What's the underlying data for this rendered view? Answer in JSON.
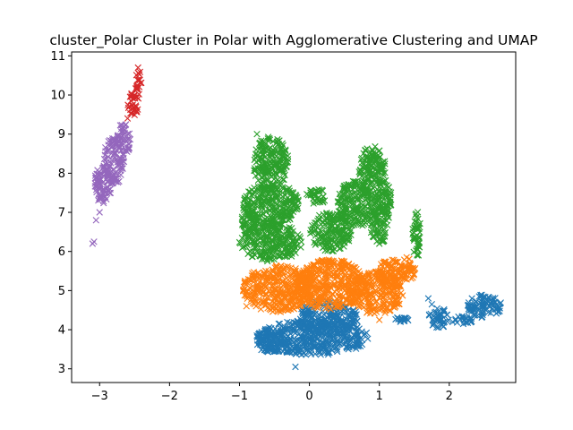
{
  "chart_data": {
    "type": "scatter",
    "title": "cluster_Polar Cluster in Polar with Agglomerative Clustering and UMAP",
    "xlabel": "",
    "ylabel": "",
    "xlim": [
      -3.4,
      2.95
    ],
    "ylim": [
      2.65,
      11.1
    ],
    "xticks": [
      -3,
      -2,
      -1,
      0,
      1,
      2
    ],
    "xtick_labels": [
      "−3",
      "−2",
      "−1",
      "0",
      "1",
      "2"
    ],
    "yticks": [
      3,
      4,
      5,
      6,
      7,
      8,
      9,
      10,
      11
    ],
    "ytick_labels": [
      "3",
      "4",
      "5",
      "6",
      "7",
      "8",
      "9",
      "10",
      "11"
    ],
    "grid": false,
    "legend": "none",
    "marker": "x",
    "series": [
      {
        "color": "#1f77b4",
        "regions": [
          {
            "cx": 0.05,
            "cy": 3.8,
            "rx": 0.8,
            "ry": 0.45
          },
          {
            "cx": 0.25,
            "cy": 4.3,
            "rx": 0.45,
            "ry": 0.45
          },
          {
            "cx": -0.55,
            "cy": 3.7,
            "rx": 0.25,
            "ry": 0.3
          },
          {
            "cx": 1.3,
            "cy": 4.25,
            "rx": 0.12,
            "ry": 0.07
          },
          {
            "cx": 1.85,
            "cy": 4.3,
            "rx": 0.15,
            "ry": 0.25
          },
          {
            "cx": 2.5,
            "cy": 4.6,
            "rx": 0.25,
            "ry": 0.3
          },
          {
            "cx": 2.2,
            "cy": 4.25,
            "rx": 0.15,
            "ry": 0.1
          }
        ],
        "points": [
          [
            -0.2,
            3.05
          ],
          [
            1.7,
            4.8
          ],
          [
            1.75,
            4.65
          ],
          [
            2.05,
            4.2
          ],
          [
            2.2,
            4.15
          ]
        ]
      },
      {
        "color": "#ff7f0e",
        "regions": [
          {
            "cx": -0.45,
            "cy": 5.05,
            "rx": 0.5,
            "ry": 0.6
          },
          {
            "cx": 0.3,
            "cy": 5.15,
            "rx": 0.5,
            "ry": 0.65
          },
          {
            "cx": 0.95,
            "cy": 4.95,
            "rx": 0.4,
            "ry": 0.55
          },
          {
            "cx": 1.4,
            "cy": 5.55,
            "rx": 0.12,
            "ry": 0.3
          },
          {
            "cx": 1.15,
            "cy": 5.5,
            "rx": 0.2,
            "ry": 0.3
          }
        ],
        "points": [
          [
            1.0,
            4.25
          ],
          [
            -0.9,
            4.6
          ]
        ]
      },
      {
        "color": "#2ca02c",
        "regions": [
          {
            "cx": -0.55,
            "cy": 6.25,
            "rx": 0.45,
            "ry": 0.5
          },
          {
            "cx": -0.55,
            "cy": 7.2,
            "rx": 0.4,
            "ry": 0.55
          },
          {
            "cx": -0.55,
            "cy": 8.25,
            "rx": 0.25,
            "ry": 0.7
          },
          {
            "cx": -0.85,
            "cy": 6.8,
            "rx": 0.12,
            "ry": 0.3
          },
          {
            "cx": 0.1,
            "cy": 7.4,
            "rx": 0.15,
            "ry": 0.2
          },
          {
            "cx": 0.3,
            "cy": 6.5,
            "rx": 0.3,
            "ry": 0.5
          },
          {
            "cx": 0.65,
            "cy": 7.2,
            "rx": 0.25,
            "ry": 0.6
          },
          {
            "cx": 0.9,
            "cy": 8.0,
            "rx": 0.2,
            "ry": 0.7
          },
          {
            "cx": 1.0,
            "cy": 6.8,
            "rx": 0.15,
            "ry": 0.6
          },
          {
            "cx": 1.1,
            "cy": 7.4,
            "rx": 0.08,
            "ry": 0.4
          },
          {
            "cx": 1.53,
            "cy": 6.4,
            "rx": 0.06,
            "ry": 0.65
          }
        ],
        "points": [
          [
            1.0,
            6.2
          ],
          [
            -0.75,
            9.0
          ],
          [
            0.1,
            7.55
          ]
        ]
      },
      {
        "color": "#d62728",
        "regions": [
          {
            "cx": -2.45,
            "cy": 10.3,
            "rx": 0.05,
            "ry": 0.4
          },
          {
            "cx": -2.52,
            "cy": 9.75,
            "rx": 0.08,
            "ry": 0.3
          }
        ],
        "points": [
          [
            -2.45,
            10.7
          ],
          [
            -2.6,
            9.4
          ]
        ]
      },
      {
        "color": "#9467bd",
        "regions": [
          {
            "cx": -2.95,
            "cy": 7.7,
            "rx": 0.13,
            "ry": 0.5
          },
          {
            "cx": -2.8,
            "cy": 8.3,
            "rx": 0.15,
            "ry": 0.6
          },
          {
            "cx": -2.65,
            "cy": 8.9,
            "rx": 0.1,
            "ry": 0.4
          }
        ],
        "points": [
          [
            -3.1,
            6.2
          ],
          [
            -3.08,
            6.25
          ],
          [
            -3.05,
            6.8
          ],
          [
            -3.0,
            7.0
          ]
        ]
      }
    ]
  }
}
